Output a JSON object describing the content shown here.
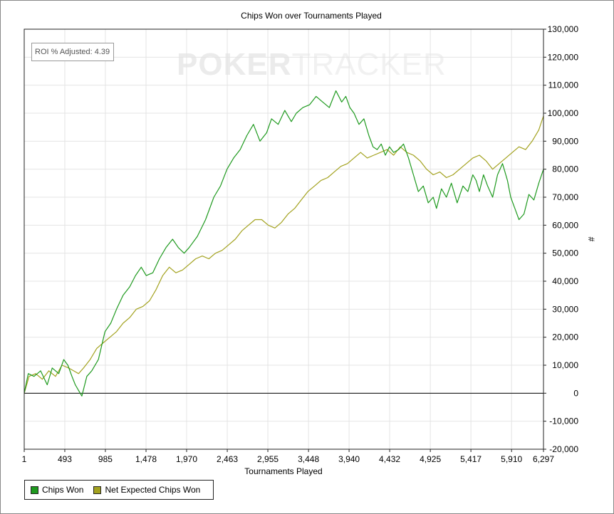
{
  "colors": {
    "chips_won": "#1f9a1f",
    "net_expected": "#a3a21f",
    "grid": "#e4e4e4"
  },
  "watermark": {
    "part1": "POKER",
    "part2": "TRACKER"
  },
  "annotation": {
    "roi_label": "ROI % Adjusted: 4.39"
  },
  "chart_data": {
    "type": "line",
    "title": "Chips Won over Tournaments Played",
    "xlabel": "Tournaments Played",
    "ylabel": "#",
    "xlim": [
      1,
      6297
    ],
    "ylim": [
      -20000,
      130000
    ],
    "x_ticks": [
      "1",
      "493",
      "985",
      "1,478",
      "1,970",
      "2,463",
      "2,955",
      "3,448",
      "3,940",
      "4,432",
      "4,925",
      "5,417",
      "5,910",
      "6,297"
    ],
    "y_ticks": [
      "130,000",
      "120,000",
      "110,000",
      "100,000",
      "90,000",
      "80,000",
      "70,000",
      "60,000",
      "50,000",
      "40,000",
      "30,000",
      "20,000",
      "10,000",
      "0",
      "-10,000",
      "-20,000"
    ],
    "grid": true,
    "legend_position": "bottom-left",
    "series": [
      {
        "name": "Chips Won",
        "x": [
          1,
          50,
          120,
          200,
          280,
          340,
          420,
          480,
          530,
          580,
          620,
          660,
          700,
          760,
          820,
          900,
          980,
          1050,
          1120,
          1200,
          1280,
          1350,
          1420,
          1480,
          1560,
          1640,
          1720,
          1800,
          1870,
          1940,
          2000,
          2100,
          2200,
          2300,
          2380,
          2460,
          2540,
          2620,
          2700,
          2780,
          2860,
          2940,
          3000,
          3080,
          3160,
          3240,
          3300,
          3380,
          3460,
          3540,
          3620,
          3700,
          3780,
          3850,
          3900,
          3950,
          4000,
          4060,
          4120,
          4180,
          4230,
          4280,
          4330,
          4380,
          4430,
          4480,
          4540,
          4600,
          4660,
          4720,
          4780,
          4840,
          4900,
          4960,
          5000,
          5060,
          5120,
          5180,
          5250,
          5320,
          5380,
          5440,
          5480,
          5520,
          5570,
          5620,
          5680,
          5740,
          5800,
          5860,
          5900,
          5950,
          6000,
          6060,
          6120,
          6180,
          6240,
          6297
        ],
        "values": [
          0,
          7000,
          6000,
          8000,
          3000,
          9000,
          7000,
          12000,
          10000,
          6000,
          3000,
          1000,
          -1000,
          6000,
          8000,
          12000,
          22000,
          25000,
          30000,
          35000,
          38000,
          42000,
          45000,
          42000,
          43000,
          48000,
          52000,
          55000,
          52000,
          50000,
          52000,
          56000,
          62000,
          70000,
          74000,
          80000,
          84000,
          87000,
          92000,
          96000,
          90000,
          93000,
          98000,
          96000,
          101000,
          97000,
          100000,
          102000,
          103000,
          106000,
          104000,
          102000,
          108000,
          104000,
          106000,
          102000,
          100000,
          96000,
          98000,
          92000,
          88000,
          87000,
          89000,
          85000,
          88000,
          86000,
          87000,
          89000,
          84000,
          78000,
          72000,
          74000,
          68000,
          70000,
          66000,
          73000,
          70000,
          75000,
          68000,
          74000,
          72000,
          78000,
          76000,
          72000,
          78000,
          74000,
          70000,
          78000,
          82000,
          76000,
          70000,
          66000,
          62000,
          64000,
          71000,
          69000,
          75000,
          80000
        ]
      },
      {
        "name": "Net Expected Chips Won",
        "x": [
          1,
          60,
          140,
          220,
          300,
          380,
          460,
          540,
          600,
          660,
          720,
          800,
          880,
          960,
          1040,
          1120,
          1200,
          1280,
          1360,
          1440,
          1520,
          1600,
          1680,
          1760,
          1840,
          1920,
          2000,
          2080,
          2160,
          2240,
          2320,
          2400,
          2480,
          2560,
          2640,
          2720,
          2800,
          2880,
          2960,
          3040,
          3120,
          3200,
          3280,
          3360,
          3440,
          3520,
          3600,
          3680,
          3760,
          3840,
          3920,
          4000,
          4080,
          4160,
          4240,
          4320,
          4400,
          4480,
          4560,
          4640,
          4720,
          4800,
          4880,
          4960,
          5040,
          5120,
          5200,
          5280,
          5360,
          5440,
          5520,
          5600,
          5680,
          5760,
          5840,
          5920,
          6000,
          6080,
          6160,
          6240,
          6297
        ],
        "values": [
          0,
          6000,
          7000,
          5000,
          8000,
          6000,
          10000,
          9000,
          8000,
          7000,
          9000,
          12000,
          16000,
          18000,
          20000,
          22000,
          25000,
          27000,
          30000,
          31000,
          33000,
          37000,
          42000,
          45000,
          43000,
          44000,
          46000,
          48000,
          49000,
          48000,
          50000,
          51000,
          53000,
          55000,
          58000,
          60000,
          62000,
          62000,
          60000,
          59000,
          61000,
          64000,
          66000,
          69000,
          72000,
          74000,
          76000,
          77000,
          79000,
          81000,
          82000,
          84000,
          86000,
          84000,
          85000,
          86000,
          87000,
          85000,
          88000,
          86000,
          85000,
          83000,
          80000,
          78000,
          79000,
          77000,
          78000,
          80000,
          82000,
          84000,
          85000,
          83000,
          80000,
          82000,
          84000,
          86000,
          88000,
          87000,
          90000,
          94000,
          99000
        ]
      }
    ]
  }
}
